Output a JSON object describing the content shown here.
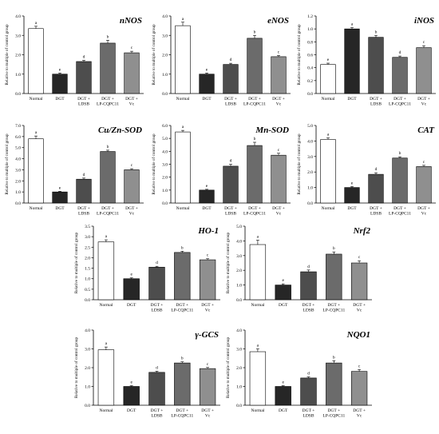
{
  "shared": {
    "categories": [
      [
        "Normal"
      ],
      [
        "DGT"
      ],
      [
        "DGT +",
        "LDSB"
      ],
      [
        "DGT +",
        "LP-CQPC11"
      ],
      [
        "DGT +",
        "Vc"
      ]
    ],
    "ylabel": "Relative to multiple of control group",
    "bar_colors": [
      "#ffffff",
      "#262626",
      "#4d4d4d",
      "#6b6b6b",
      "#8f8f8f"
    ]
  },
  "chart_data": [
    {
      "type": "bar",
      "title": "nNOS",
      "ylim": [
        0,
        4.0
      ],
      "yticks": [
        "0.0",
        "1.0",
        "2.0",
        "3.0",
        "4.0"
      ],
      "values": [
        3.35,
        1.0,
        1.65,
        2.6,
        2.1
      ],
      "errors": [
        0.12,
        0.06,
        0.06,
        0.15,
        0.08
      ],
      "letters": [
        "a",
        "e",
        "d",
        "b",
        "c"
      ]
    },
    {
      "type": "bar",
      "title": "eNOS",
      "ylim": [
        0,
        4.0
      ],
      "yticks": [
        "0.0",
        "1.0",
        "2.0",
        "3.0",
        "4.0"
      ],
      "values": [
        3.5,
        1.0,
        1.5,
        2.85,
        1.9
      ],
      "errors": [
        0.18,
        0.06,
        0.06,
        0.15,
        0.06
      ],
      "letters": [
        "a",
        "e",
        "d",
        "b",
        "c"
      ]
    },
    {
      "type": "bar",
      "title": "iNOS",
      "ylim": [
        0,
        1.2
      ],
      "yticks": [
        "0.0",
        "0.2",
        "0.4",
        "0.6",
        "0.8",
        "1.0",
        "1.2"
      ],
      "values": [
        0.45,
        1.0,
        0.87,
        0.56,
        0.71
      ],
      "errors": [
        0.02,
        0.02,
        0.03,
        0.02,
        0.03
      ],
      "letters": [
        "e",
        "a",
        "b",
        "d",
        "c"
      ]
    },
    {
      "type": "bar",
      "title": "Cu/Zn-SOD",
      "ylim": [
        0,
        7.0
      ],
      "yticks": [
        "0.0",
        "1.0",
        "2.0",
        "3.0",
        "4.0",
        "5.0",
        "6.0",
        "7.0"
      ],
      "values": [
        5.8,
        1.0,
        2.15,
        4.65,
        3.0
      ],
      "errors": [
        0.25,
        0.06,
        0.1,
        0.12,
        0.1
      ],
      "letters": [
        "a",
        "e",
        "d",
        "b",
        "c"
      ]
    },
    {
      "type": "bar",
      "title": "Mn-SOD",
      "ylim": [
        0,
        6.0
      ],
      "yticks": [
        "0.0",
        "1.0",
        "2.0",
        "3.0",
        "4.0",
        "5.0",
        "6.0"
      ],
      "values": [
        5.5,
        1.0,
        2.85,
        4.45,
        3.7
      ],
      "errors": [
        0.12,
        0.06,
        0.15,
        0.25,
        0.15
      ],
      "letters": [
        "a",
        "e",
        "d",
        "b",
        "c"
      ]
    },
    {
      "type": "bar",
      "title": "CAT",
      "ylim": [
        0,
        5.0
      ],
      "yticks": [
        "0.0",
        "1.0",
        "2.0",
        "3.0",
        "4.0",
        "5.0"
      ],
      "values": [
        4.1,
        1.0,
        1.85,
        2.9,
        2.35
      ],
      "errors": [
        0.1,
        0.06,
        0.1,
        0.08,
        0.08
      ],
      "letters": [
        "a",
        "e",
        "d",
        "b",
        "c"
      ]
    },
    {
      "type": "bar",
      "title": "HO-1",
      "ylim": [
        0,
        3.5
      ],
      "yticks": [
        "0.0",
        "0.5",
        "1.0",
        "1.5",
        "2.0",
        "2.5",
        "3.0",
        "3.5"
      ],
      "values": [
        2.75,
        1.0,
        1.55,
        2.25,
        1.9
      ],
      "errors": [
        0.1,
        0.04,
        0.04,
        0.06,
        0.05
      ],
      "letters": [
        "a",
        "e",
        "d",
        "b",
        "c"
      ]
    },
    {
      "type": "bar",
      "title": "Nrf2",
      "ylim": [
        0,
        5.0
      ],
      "yticks": [
        "0.0",
        "1.0",
        "2.0",
        "3.0",
        "4.0",
        "5.0"
      ],
      "values": [
        3.75,
        1.0,
        1.9,
        3.1,
        2.5
      ],
      "errors": [
        0.3,
        0.08,
        0.12,
        0.15,
        0.15
      ],
      "letters": [
        "a",
        "e",
        "d",
        "b",
        "c"
      ]
    },
    {
      "type": "bar",
      "title": "γ-GCS",
      "ylim": [
        0,
        4.0
      ],
      "yticks": [
        "0.0",
        "1.0",
        "2.0",
        "3.0",
        "4.0"
      ],
      "values": [
        2.95,
        1.0,
        1.75,
        2.25,
        1.95
      ],
      "errors": [
        0.15,
        0.04,
        0.06,
        0.06,
        0.06
      ],
      "letters": [
        "a",
        "e",
        "d",
        "b",
        "c"
      ]
    },
    {
      "type": "bar",
      "title": "NQO1",
      "ylim": [
        0,
        4.0
      ],
      "yticks": [
        "0.0",
        "1.0",
        "2.0",
        "3.0",
        "4.0"
      ],
      "values": [
        2.85,
        1.0,
        1.45,
        2.25,
        1.8
      ],
      "errors": [
        0.15,
        0.04,
        0.06,
        0.12,
        0.1
      ],
      "letters": [
        "a",
        "e",
        "d",
        "b",
        "c"
      ]
    }
  ]
}
